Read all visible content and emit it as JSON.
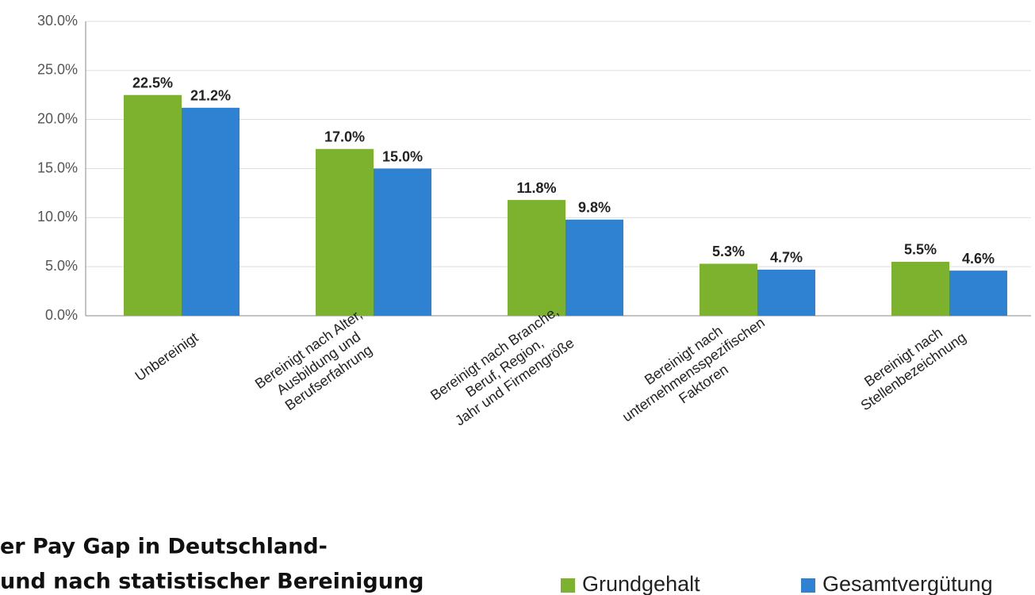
{
  "chart_data": {
    "type": "bar",
    "title_lines": [
      "er Pay Gap in Deutschland-",
      "und nach statistischer Bereinigung"
    ],
    "categories": [
      [
        "Unbereinigt"
      ],
      [
        "Bereinigt nach Alter,",
        "Ausbildung und",
        "Berufserfahrung"
      ],
      [
        "Bereinigt nach Branche,",
        "Beruf, Region,",
        "Jahr und Firmengröße"
      ],
      [
        "Bereinigt nach",
        "unternehmensspezifischen",
        "Faktoren"
      ],
      [
        "Bereinigt nach",
        "Stellenbezeichnung"
      ]
    ],
    "series": [
      {
        "name": "Grundgehalt",
        "color": "#7cb22e",
        "values": [
          22.5,
          17.0,
          11.8,
          5.3,
          5.5
        ],
        "value_labels": [
          "22.5%",
          "17.0%",
          "11.8%",
          "5.3%",
          "5.5%"
        ]
      },
      {
        "name": "Gesamtvergütung",
        "color": "#2f82d2",
        "values": [
          21.2,
          15.0,
          9.8,
          4.7,
          4.6
        ],
        "value_labels": [
          "21.2%",
          "15.0%",
          "9.8%",
          "4.7%",
          "4.6%"
        ]
      }
    ],
    "ylim": [
      0,
      30
    ],
    "yticks": [
      {
        "value": 0,
        "label": "0.0%"
      },
      {
        "value": 5,
        "label": "5.0%"
      },
      {
        "value": 10,
        "label": "10.0%"
      },
      {
        "value": 15,
        "label": "15.0%"
      },
      {
        "value": 20,
        "label": "20.0%"
      },
      {
        "value": 25,
        "label": "25.0%"
      },
      {
        "value": 30,
        "label": "30.0%"
      }
    ],
    "grid": true
  }
}
